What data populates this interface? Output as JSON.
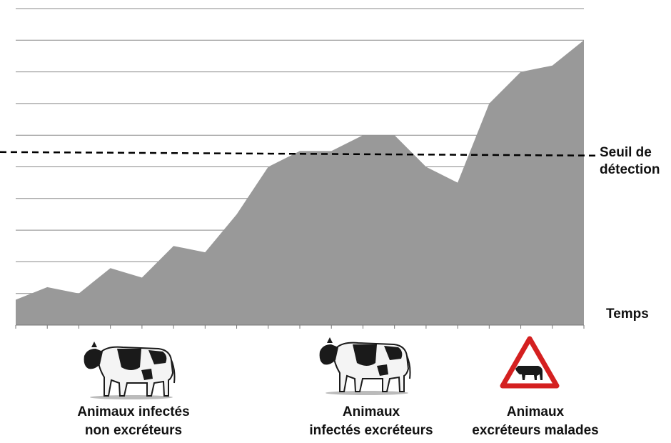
{
  "chart_data": {
    "type": "area",
    "x": [
      0,
      1,
      2,
      3,
      4,
      5,
      6,
      7,
      8,
      9,
      10,
      11,
      12,
      13,
      14,
      15,
      16,
      17,
      18
    ],
    "values": [
      0.8,
      1.2,
      1.0,
      1.8,
      1.5,
      2.5,
      2.3,
      3.5,
      5.0,
      5.5,
      5.5,
      6.0,
      6.0,
      5.0,
      4.5,
      7.0,
      8.0,
      8.2,
      9.0
    ],
    "ylim": [
      0,
      10
    ],
    "threshold": 5.4,
    "threshold_label": [
      "Seuil de",
      "détection"
    ],
    "xlabel": "Temps",
    "grid": true,
    "fill_color": "#999999",
    "grid_color": "#888888"
  },
  "stages": [
    {
      "lines": [
        "Animaux infectés",
        "non excréteurs"
      ],
      "icon": "cow-icon"
    },
    {
      "lines": [
        "Animaux",
        "infectés excréteurs"
      ],
      "icon": "cow-icon"
    },
    {
      "lines": [
        "Animaux",
        "excréteurs malades"
      ],
      "icon": "warning-cow-icon"
    }
  ],
  "colors": {
    "warning_red": "#d42020",
    "cow_black": "#1a1a1a"
  }
}
